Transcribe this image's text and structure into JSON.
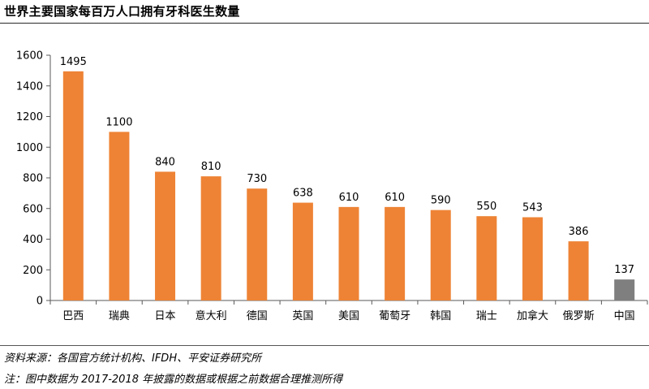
{
  "title": "世界主要国家每百万人口拥有牙科医生数量",
  "footer": {
    "source": "资料来源：各国官方统计机构、IFDH、平安证券研究所",
    "note": "注：图中数据为 2017-2018 年披露的数据或根据之前数据合理推测所得"
  },
  "colors": {
    "bar": "#EE8335",
    "highlight": "#7F7F7F",
    "axis": "#595959"
  },
  "chart_data": {
    "type": "bar",
    "title": "世界主要国家每百万人口拥有牙科医生数量",
    "xlabel": "",
    "ylabel": "",
    "categories": [
      "巴西",
      "瑞典",
      "日本",
      "意大利",
      "德国",
      "英国",
      "美国",
      "葡萄牙",
      "韩国",
      "瑞士",
      "加拿大",
      "俄罗斯",
      "中国"
    ],
    "values": [
      1495,
      1100,
      840,
      810,
      730,
      638,
      610,
      610,
      590,
      550,
      543,
      386,
      137
    ],
    "data_labels": [
      "1495",
      "1100",
      "840",
      "810",
      "730",
      "638",
      "610",
      "610",
      "590",
      "550",
      "543",
      "386",
      "137"
    ],
    "highlight_category": "中国",
    "ylim": [
      0,
      1600
    ],
    "yticks": [
      0,
      200,
      400,
      600,
      800,
      1000,
      1200,
      1400,
      1600
    ],
    "ytick_labels": [
      "0",
      "200",
      "400",
      "600",
      "800",
      "1000",
      "1200",
      "1400",
      "1600"
    ],
    "grid": false,
    "legend": "none"
  }
}
